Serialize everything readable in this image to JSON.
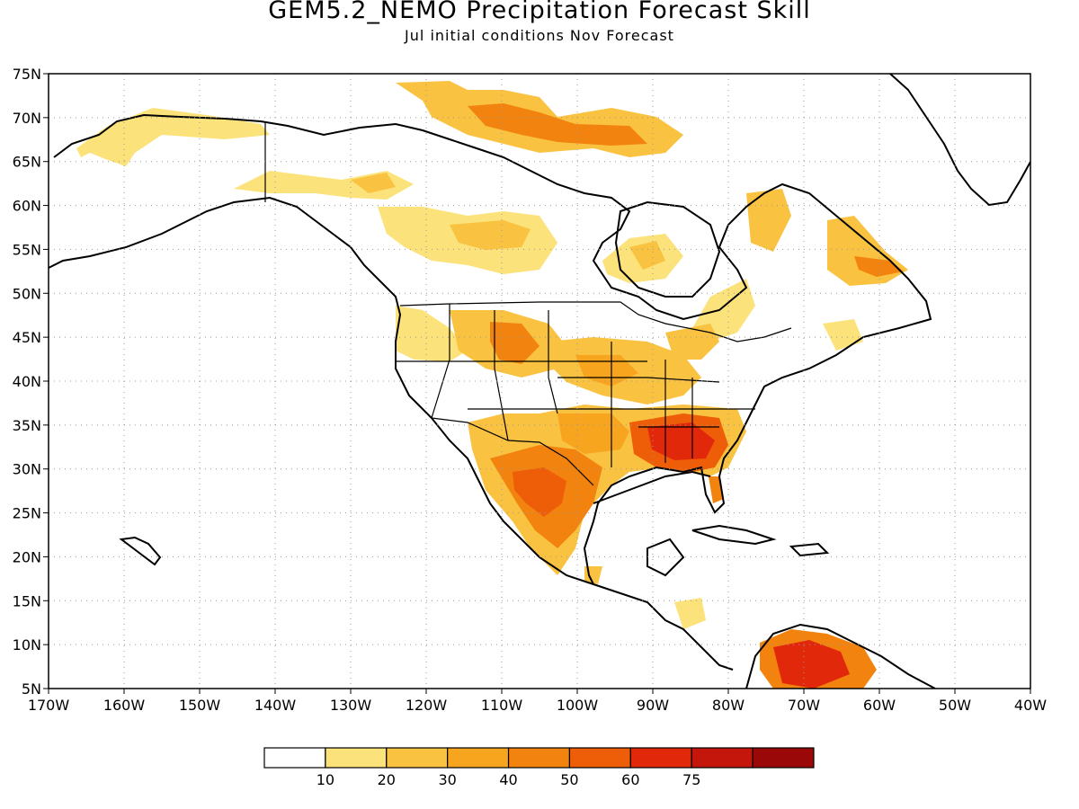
{
  "title": "GEM5.2_NEMO Precipitation Forecast Skill",
  "subtitle": "Jul initial conditions   Nov Forecast",
  "map": {
    "region": "North America",
    "lon_range": [
      -170,
      -40
    ],
    "lat_range": [
      5,
      75
    ],
    "grid": "dotted",
    "lat_ticks": [
      "75N",
      "70N",
      "65N",
      "60N",
      "55N",
      "50N",
      "45N",
      "40N",
      "35N",
      "30N",
      "25N",
      "20N",
      "15N",
      "10N",
      "5N"
    ],
    "lon_ticks": [
      "170W",
      "160W",
      "150W",
      "140W",
      "130W",
      "120W",
      "110W",
      "100W",
      "90W",
      "80W",
      "70W",
      "60W",
      "50W",
      "40W"
    ]
  },
  "colorbar": {
    "colors": [
      "#ffffff",
      "#fbe27a",
      "#f9c241",
      "#f7a41e",
      "#f3830f",
      "#ee5d08",
      "#e2280a",
      "#c4160b",
      "#9b0808"
    ],
    "labels": [
      "10",
      "20",
      "30",
      "40",
      "50",
      "60",
      "75"
    ]
  }
}
